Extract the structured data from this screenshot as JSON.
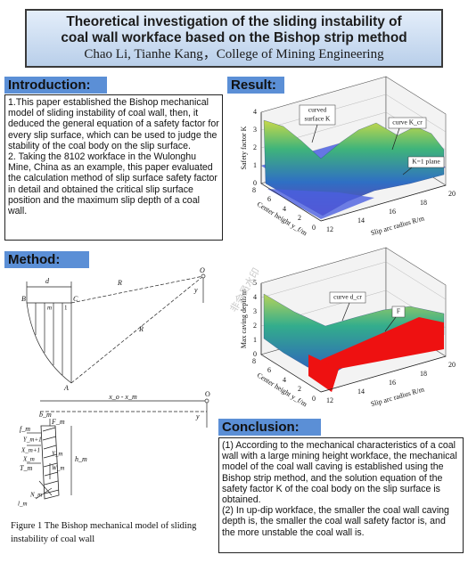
{
  "header": {
    "title": [
      "Theoretical investigation of the sliding instability of",
      "coal wall workface based on the Bishop strip method"
    ],
    "authors": "Chao Li, Tianhe Kang，College of Mining Engineering"
  },
  "introduction": {
    "heading": "Introduction:",
    "paragraphs": [
      "1.This paper established the Bishop mechanical model of sliding instability of coal wall, then, it deduced the general equation of a safety factor for every slip surface, which can be used to judge the stability of the coal body on the slip surface.",
      "2. Taking the 8102 workface in the Wulonghu Mine, China as an example, this paper evaluated the calculation method of slip surface safety factor in detail and obtained the critical slip surface position and the maximum slip depth of a coal wall."
    ]
  },
  "result": {
    "heading": "Result:",
    "plot": {
      "z_label": "Safety factor K",
      "z_ticks": [
        0,
        1,
        2,
        3,
        4
      ],
      "y_label": "Center height y_f/m",
      "y_ticks": [
        8,
        6,
        4,
        2,
        0
      ],
      "x_label": "Slip arc radius R/m",
      "x_ticks": [
        12,
        14,
        16,
        18,
        20
      ],
      "annotations": [
        "curved",
        "surface K",
        "curve K_cr",
        "K=1 plane"
      ]
    }
  },
  "method": {
    "heading": "Method:",
    "diagram_1_labels": [
      "d",
      "R",
      "R",
      "O",
      "y",
      "B",
      "C",
      "A",
      "m",
      "1"
    ],
    "diagram_2_labels": [
      "x_o - x_m",
      "O",
      "y",
      "b_m",
      "F_m",
      "f_m",
      "Y_m+1",
      "X_m+1",
      "X_m",
      "Y_m",
      "W_m",
      "h_m",
      "T_m",
      "N_m",
      "l_m"
    ],
    "caption": "Figure 1 The Bishop mechanical model of sliding instability of coal wall",
    "plot": {
      "z_label": "Max caving depth/m",
      "z_ticks": [
        0,
        1,
        2,
        3,
        4,
        5
      ],
      "y_label": "Center height y_f/m",
      "y_ticks": [
        8,
        6,
        4,
        2,
        0
      ],
      "x_label": "Slip arc radius R/m",
      "x_ticks": [
        12,
        14,
        16,
        18,
        20
      ],
      "annotations": [
        "curve d_cr",
        "F"
      ]
    }
  },
  "watermark": "非会员水印",
  "conclusion": {
    "heading": "Conclusion:",
    "paragraphs": [
      "(1) According to the mechanical characteristics of a coal wall with a large mining height workface, the mechanical model of the coal wall caving is established using the Bishop strip method, and the solution equation of the safety factor K of the coal body on the slip surface is obtained.",
      "(2) In up-dip workface, the smaller the coal wall caving depth is, the smaller the coal wall safety factor is, and the more unstable the coal wall is."
    ]
  }
}
